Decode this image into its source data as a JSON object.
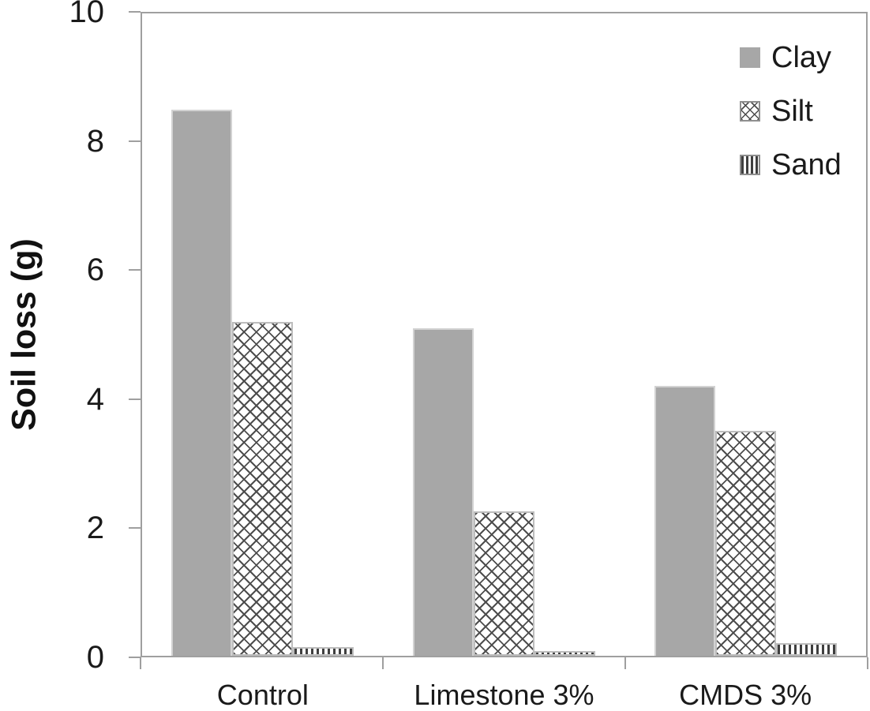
{
  "chart_data": {
    "type": "bar",
    "title": "",
    "categories": [
      "Control",
      "Limestone 3%",
      "CMDS 3%"
    ],
    "series": [
      {
        "name": "Clay",
        "pattern": "solid",
        "values": [
          8.5,
          5.1,
          4.2
        ]
      },
      {
        "name": "Silt",
        "pattern": "crosshatch",
        "values": [
          5.2,
          2.25,
          3.5
        ]
      },
      {
        "name": "Sand",
        "pattern": "vertical-stripes",
        "values": [
          0.13,
          0.07,
          0.2
        ]
      }
    ],
    "xlabel": "",
    "ylabel": "Soil loss (g)",
    "ylim": [
      0,
      10
    ],
    "yticks": [
      0,
      2,
      4,
      6,
      8,
      10
    ],
    "grid": false,
    "legend_position": "top-right"
  },
  "colors": {
    "clay_fill": "#a7a7a7",
    "clay_border": "#d2d2d2",
    "pattern_line": "#4d4d4d",
    "sand_stripe": "#3f3f3f",
    "pattern_bar_border": "#bdbdbd",
    "axis_line": "#9f9f9f",
    "text": "#1a1a1a",
    "background": "#ffffff"
  }
}
